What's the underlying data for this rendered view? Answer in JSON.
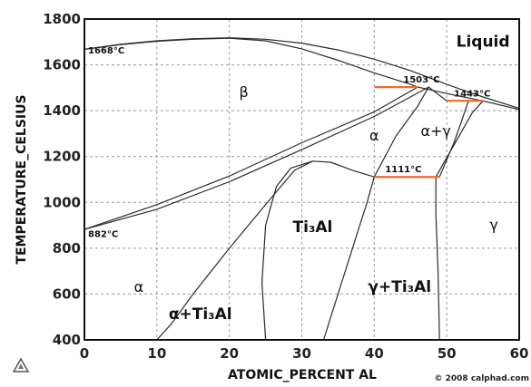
{
  "chart_data": {
    "type": "line",
    "title": "",
    "xlabel": "ATOMIC_PERCENT AL",
    "ylabel": "TEMPERATURE_CELSIUS",
    "xlim": [
      0,
      60
    ],
    "ylim": [
      400,
      1800
    ],
    "x_ticks": [
      "0",
      "10",
      "20",
      "30",
      "40",
      "50",
      "60"
    ],
    "y_ticks": [
      "400",
      "600",
      "800",
      "1000",
      "1200",
      "1400",
      "1600",
      "1800"
    ],
    "grid": "dashed",
    "credit": "© 2008 calphad.com",
    "phase_labels": [
      {
        "text": "Liquid",
        "x": 55,
        "y": 1680
      },
      {
        "text": "β",
        "x": 22,
        "y": 1460
      },
      {
        "text": "α",
        "x": 40,
        "y": 1270
      },
      {
        "text": "α+γ",
        "x": 48.5,
        "y": 1290
      },
      {
        "text": "Ti₃Al",
        "x": 31.5,
        "y": 870
      },
      {
        "text": "γ",
        "x": 56.5,
        "y": 880
      },
      {
        "text": "α",
        "x": 7.5,
        "y": 610
      },
      {
        "text": "γ+Ti₃Al",
        "x": 43.5,
        "y": 610
      },
      {
        "text": "α+Ti₃Al",
        "x": 16,
        "y": 490
      }
    ],
    "temperature_labels": [
      {
        "text": "1668°C",
        "x": 0.5,
        "y": 1650
      },
      {
        "text": "882°C",
        "x": 0.5,
        "y": 848
      },
      {
        "text": "1503°C",
        "x": 44,
        "y": 1523
      },
      {
        "text": "1443°C",
        "x": 51,
        "y": 1462
      },
      {
        "text": "1111°C",
        "x": 41.5,
        "y": 1132
      }
    ],
    "series": [
      {
        "points": [
          [
            0,
            1668
          ],
          [
            5,
            1690
          ],
          [
            10,
            1705
          ],
          [
            15,
            1714
          ],
          [
            20,
            1718
          ],
          [
            25,
            1712
          ],
          [
            30,
            1695
          ],
          [
            35,
            1665
          ],
          [
            40,
            1625
          ],
          [
            45,
            1575
          ],
          [
            50,
            1515
          ],
          [
            55,
            1460
          ],
          [
            60,
            1410
          ]
        ]
      },
      {
        "points": [
          [
            0,
            1668
          ],
          [
            5,
            1688
          ],
          [
            10,
            1703
          ],
          [
            15,
            1712
          ],
          [
            20,
            1716
          ],
          [
            25,
            1705
          ],
          [
            30,
            1670
          ],
          [
            35,
            1620
          ],
          [
            40,
            1565
          ],
          [
            45,
            1515
          ],
          [
            46,
            1503
          ],
          [
            50,
            1475
          ],
          [
            55,
            1443
          ],
          [
            60,
            1405
          ]
        ]
      },
      {
        "points": [
          [
            0,
            882
          ],
          [
            10,
            990
          ],
          [
            20,
            1115
          ],
          [
            30,
            1260
          ],
          [
            40,
            1395
          ],
          [
            46,
            1503
          ]
        ]
      },
      {
        "points": [
          [
            0,
            882
          ],
          [
            10,
            970
          ],
          [
            20,
            1090
          ],
          [
            30,
            1230
          ],
          [
            40,
            1375
          ],
          [
            47.5,
            1503
          ],
          [
            50,
            1443
          ],
          [
            55,
            1443
          ]
        ]
      },
      {
        "points": [
          [
            10,
            400
          ],
          [
            12,
            470
          ],
          [
            15,
            600
          ],
          [
            20,
            800
          ],
          [
            25,
            990
          ],
          [
            29,
            1140
          ],
          [
            31.5,
            1180
          ],
          [
            34,
            1175
          ],
          [
            37,
            1140
          ],
          [
            40,
            1111
          ]
        ]
      },
      {
        "points": [
          [
            40,
            1111
          ],
          [
            43,
            1290
          ],
          [
            46,
            1420
          ],
          [
            47.5,
            1503
          ]
        ]
      },
      {
        "points": [
          [
            25,
            400
          ],
          [
            24.5,
            650
          ],
          [
            25,
            900
          ],
          [
            26.5,
            1070
          ],
          [
            28.5,
            1150
          ],
          [
            31.5,
            1180
          ]
        ]
      },
      {
        "points": [
          [
            33,
            400
          ],
          [
            35,
            600
          ],
          [
            37.5,
            850
          ],
          [
            39,
            1000
          ],
          [
            40,
            1111
          ]
        ]
      },
      {
        "points": [
          [
            49,
            400
          ],
          [
            48.8,
            700
          ],
          [
            48.5,
            950
          ],
          [
            48.5,
            1111
          ]
        ]
      },
      {
        "points": [
          [
            48.5,
            1111
          ],
          [
            51,
            1250
          ],
          [
            53.5,
            1390
          ],
          [
            55,
            1443
          ]
        ]
      },
      {
        "points": [
          [
            49,
            1111
          ],
          [
            51,
            1260
          ],
          [
            52,
            1350
          ],
          [
            53,
            1443
          ]
        ]
      }
    ],
    "isotherms": [
      {
        "temperature": 1503,
        "x_from": 40,
        "x_to": 46,
        "color": "#ee6a2a"
      },
      {
        "temperature": 1443,
        "x_from": 50,
        "x_to": 55,
        "color": "#ee6a2a"
      },
      {
        "temperature": 1111,
        "x_from": 40,
        "x_to": 49,
        "color": "#ee6a2a"
      }
    ],
    "colors": {
      "curve": "#2a2a2a",
      "isotherm": "#ee6a2a",
      "grid": "#9a9a9a"
    }
  }
}
